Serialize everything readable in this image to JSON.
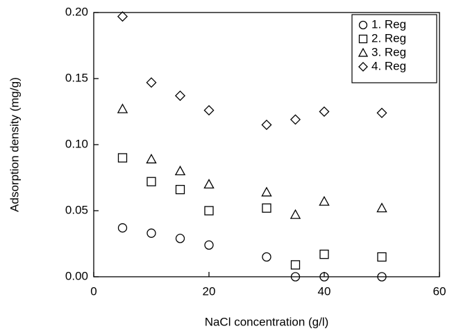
{
  "chart_data": {
    "type": "scatter",
    "x_label": "NaCl concentration (g/l)",
    "y_label": "Adsorption density (mg/g)",
    "x": [
      5,
      10,
      15,
      20,
      30,
      35,
      40,
      50
    ],
    "series": [
      {
        "name": "1. Reg",
        "marker": "circle",
        "color": "#000000",
        "values": [
          0.037,
          0.033,
          0.029,
          0.024,
          0.015,
          0,
          0,
          0
        ]
      },
      {
        "name": "2. Reg",
        "marker": "square",
        "color": "#000000",
        "values": [
          0.09,
          0.072,
          0.066,
          0.05,
          0.052,
          0.009,
          0.017,
          0.015
        ]
      },
      {
        "name": "3. Reg",
        "marker": "triangle",
        "color": "#000000",
        "values": [
          0.127,
          0.089,
          0.08,
          0.07,
          0.064,
          0.047,
          0.057,
          0.052
        ]
      },
      {
        "name": "4. Reg",
        "marker": "diamond",
        "color": "#000000",
        "values": [
          0.197,
          0.147,
          0.137,
          0.126,
          0.115,
          0.119,
          0.125,
          0.124
        ]
      }
    ],
    "xlim": [
      0,
      60
    ],
    "xticks": [
      0,
      20,
      40,
      60
    ],
    "ylim": [
      0,
      0.2
    ],
    "yticks": [
      {
        "value": 0,
        "label": "0.00"
      },
      {
        "value": 0.05,
        "label": "0.05"
      },
      {
        "value": 0.1,
        "label": "0.10"
      },
      {
        "value": 0.15,
        "label": "0.15"
      },
      {
        "value": 0.2,
        "label": "0.20"
      }
    ],
    "legend": "upper right"
  }
}
